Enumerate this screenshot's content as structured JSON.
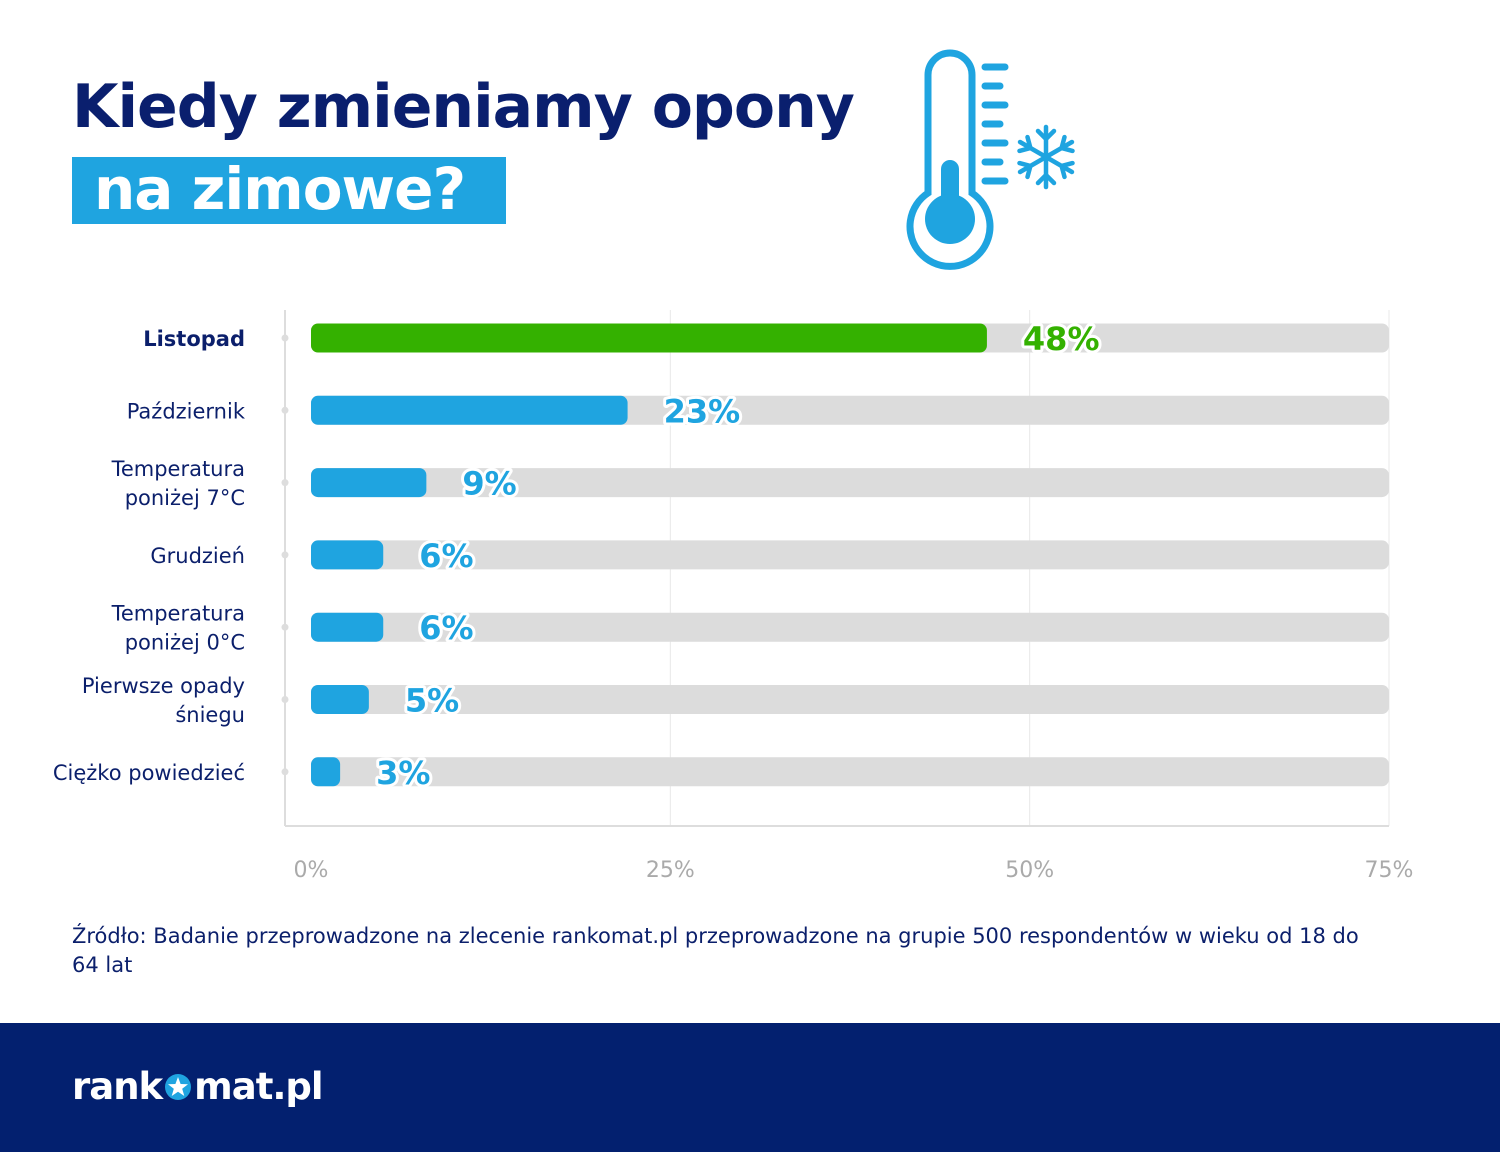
{
  "title": {
    "line1": "Kiedy zmieniamy opony",
    "line2": "na zimowe?"
  },
  "icons": [
    "thermometer-icon",
    "snowflake-icon"
  ],
  "colors": {
    "highlight": "#34b100",
    "bar": "#1fa4e0",
    "track": "#dcdcdc",
    "navy": "#03206f"
  },
  "chart_data": {
    "type": "bar",
    "orientation": "horizontal",
    "categories": [
      "Listopad",
      "Październik",
      "Temperatura poniżej 7°C",
      "Grudzień",
      "Temperatura poniżej 0°C",
      "Pierwsze opady śniegu",
      "Ciężko powiedzieć"
    ],
    "values": [
      48,
      23,
      9,
      6,
      6,
      5,
      3
    ],
    "data_labels": [
      "48%",
      "23%",
      "9%",
      "6%",
      "6%",
      "5%",
      "3%"
    ],
    "highlighted_category": "Listopad",
    "xlim": [
      0,
      75
    ],
    "xticks": [
      "0%",
      "25%",
      "50%",
      "75%"
    ],
    "grid": true
  },
  "source": "Źródło: Badanie przeprowadzone na zlecenie rankomat.pl przeprowadzone na grupie 500 respondentów w wieku od 18 do 64 lat",
  "footer": {
    "logo_left": "rank",
    "logo_right": "mat.pl"
  }
}
